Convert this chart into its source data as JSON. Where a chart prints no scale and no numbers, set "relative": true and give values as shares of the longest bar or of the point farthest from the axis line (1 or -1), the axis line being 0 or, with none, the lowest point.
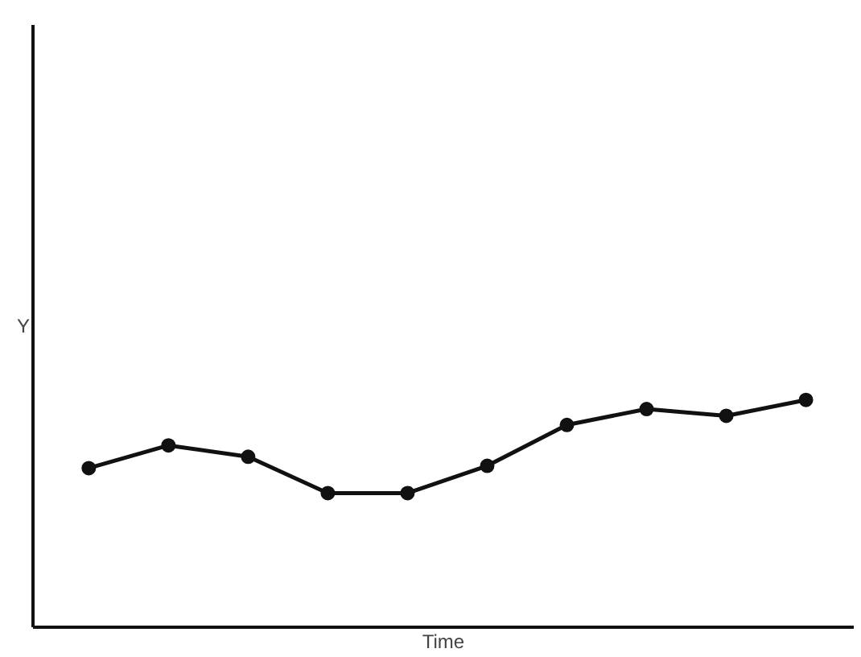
{
  "chart_data": {
    "type": "line",
    "xlabel": "Time",
    "ylabel": "Y",
    "relative": true,
    "tick_labels": false,
    "marker": "circle",
    "line_style": "solid",
    "categories": [
      null,
      null,
      null,
      null,
      null,
      null,
      null,
      null,
      null,
      null
    ],
    "series": [
      {
        "color": "#111111",
        "values": [
          0.7,
          0.8,
          0.75,
          0.59,
          0.59,
          0.71,
          0.89,
          0.96,
          0.93,
          1.0
        ]
      }
    ]
  }
}
